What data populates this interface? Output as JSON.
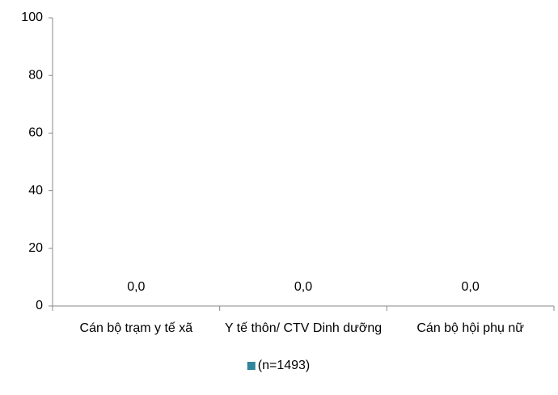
{
  "chart_data": {
    "type": "bar",
    "categories": [
      "Cán bộ trạm y tế xã",
      "Y tế thôn/ CTV Dinh dưỡng",
      "Cán bộ hội phụ nữ"
    ],
    "series": [
      {
        "name": "(n=1493)",
        "color": "#31859c",
        "values": [
          0,
          0,
          0
        ],
        "value_labels": [
          "0,0",
          "0,0",
          "0,0"
        ]
      }
    ],
    "ylim": [
      0,
      100
    ],
    "yticks": [
      0,
      20,
      40,
      60,
      80,
      100
    ],
    "grid": false,
    "legend": "bottom"
  }
}
